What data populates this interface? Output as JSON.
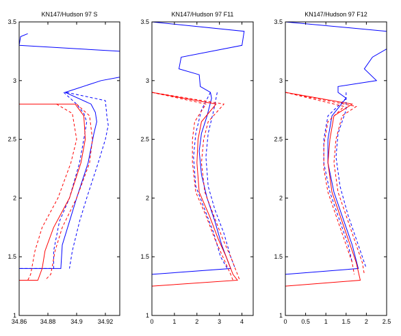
{
  "chart_data": [
    {
      "type": "line",
      "title": "KN147/Hudson 97 S",
      "xlabel": "",
      "ylabel": "",
      "xlim": [
        34.86,
        34.93
      ],
      "ylim": [
        1,
        3.5
      ],
      "xticks": [
        34.86,
        34.88,
        34.9,
        34.92
      ],
      "xtick_labels": [
        "34.86",
        "34.88",
        "34.9",
        "34.92"
      ],
      "yticks": [
        1,
        1.5,
        2,
        2.5,
        3,
        3.5
      ],
      "ytick_labels": [
        "1",
        "1.5",
        "2",
        "2.5",
        "3",
        "3.5"
      ],
      "grid": false,
      "series": [
        {
          "color": "#0000ff",
          "dash": "solid",
          "points": [
            [
              34.866,
              3.4
            ],
            [
              34.861,
              3.375
            ],
            [
              34.86,
              3.3
            ],
            [
              34.93,
              3.25
            ],
            [
              34.93,
              3.03
            ],
            [
              34.917,
              3.0
            ],
            [
              34.892,
              2.9
            ],
            [
              34.91,
              2.8
            ],
            [
              34.913,
              2.73
            ],
            [
              34.914,
              2.65
            ],
            [
              34.912,
              2.55
            ],
            [
              34.908,
              2.3
            ],
            [
              34.9,
              2.0
            ],
            [
              34.895,
              1.8
            ],
            [
              34.89,
              1.6
            ],
            [
              34.889,
              1.4
            ],
            [
              34.86,
              1.4
            ]
          ]
        },
        {
          "color": "#0000ff",
          "dash": "dashed",
          "points": [
            [
              34.891,
              2.9
            ],
            [
              34.9,
              2.8
            ],
            [
              34.905,
              2.72
            ],
            [
              34.907,
              2.65
            ],
            [
              34.905,
              2.5
            ],
            [
              34.902,
              2.3
            ],
            [
              34.895,
              2.0
            ],
            [
              34.888,
              1.8
            ],
            [
              34.884,
              1.55
            ],
            [
              34.884,
              1.4
            ],
            [
              34.86,
              1.4
            ]
          ]
        },
        {
          "color": "#0000ff",
          "dash": "dashed",
          "points": [
            [
              34.893,
              2.9
            ],
            [
              34.92,
              2.83
            ],
            [
              34.921,
              2.7
            ],
            [
              34.922,
              2.62
            ],
            [
              34.92,
              2.5
            ],
            [
              34.915,
              2.3
            ],
            [
              34.907,
              2.0
            ],
            [
              34.902,
              1.8
            ],
            [
              34.897,
              1.55
            ],
            [
              34.895,
              1.4
            ]
          ]
        },
        {
          "color": "#ff0000",
          "dash": "solid",
          "points": [
            [
              34.86,
              2.8
            ],
            [
              34.899,
              2.8
            ],
            [
              34.905,
              2.7
            ],
            [
              34.906,
              2.5
            ],
            [
              34.903,
              2.3
            ],
            [
              34.895,
              2.0
            ],
            [
              34.884,
              1.75
            ],
            [
              34.878,
              1.55
            ],
            [
              34.876,
              1.4
            ],
            [
              34.873,
              1.3
            ],
            [
              34.86,
              1.3
            ]
          ]
        },
        {
          "color": "#ff0000",
          "dash": "dashed",
          "points": [
            [
              34.886,
              2.8
            ],
            [
              34.897,
              2.72
            ],
            [
              34.9,
              2.5
            ],
            [
              34.896,
              2.3
            ],
            [
              34.887,
              2.0
            ],
            [
              34.876,
              1.75
            ],
            [
              34.871,
              1.55
            ],
            [
              34.868,
              1.35
            ],
            [
              34.866,
              1.3
            ]
          ]
        },
        {
          "color": "#ff0000",
          "dash": "dashed",
          "points": [
            [
              34.9,
              2.8
            ],
            [
              34.909,
              2.7
            ],
            [
              34.911,
              2.5
            ],
            [
              34.909,
              2.3
            ],
            [
              34.9,
              2.0
            ],
            [
              34.89,
              1.75
            ],
            [
              34.885,
              1.55
            ],
            [
              34.882,
              1.35
            ],
            [
              34.878,
              1.3
            ]
          ]
        }
      ]
    },
    {
      "type": "line",
      "title": "KN147/Hudson 97 F11",
      "xlabel": "",
      "ylabel": "",
      "xlim": [
        0,
        4.5
      ],
      "ylim": [
        1,
        3.5
      ],
      "xticks": [
        0,
        1,
        2,
        3,
        4
      ],
      "xtick_labels": [
        "0",
        "1",
        "2",
        "3",
        "4"
      ],
      "yticks": [
        1,
        1.5,
        2,
        2.5,
        3,
        3.5
      ],
      "ytick_labels": [
        "1",
        "1.5",
        "2",
        "2.5",
        "3",
        "3.5"
      ],
      "grid": false,
      "series": [
        {
          "color": "#0000ff",
          "dash": "solid",
          "points": [
            [
              0,
              3.5
            ],
            [
              4.1,
              3.42
            ],
            [
              4.0,
              3.3
            ],
            [
              1.3,
              3.2
            ],
            [
              1.2,
              3.1
            ],
            [
              2.1,
              3.05
            ],
            [
              2.15,
              2.95
            ],
            [
              2.6,
              2.9
            ],
            [
              2.65,
              2.85
            ],
            [
              2.45,
              2.7
            ],
            [
              2.2,
              2.55
            ],
            [
              2.1,
              2.4
            ],
            [
              2.2,
              2.2
            ],
            [
              2.45,
              2.0
            ],
            [
              2.8,
              1.8
            ],
            [
              3.1,
              1.6
            ],
            [
              3.5,
              1.4
            ],
            [
              0,
              1.35
            ]
          ]
        },
        {
          "color": "#0000ff",
          "dash": "dashed",
          "points": [
            [
              2.6,
              2.9
            ],
            [
              2.2,
              2.75
            ],
            [
              1.95,
              2.55
            ],
            [
              1.85,
              2.35
            ],
            [
              1.95,
              2.1
            ],
            [
              2.35,
              1.9
            ],
            [
              2.75,
              1.7
            ],
            [
              3.05,
              1.5
            ],
            [
              3.35,
              1.4
            ]
          ]
        },
        {
          "color": "#0000ff",
          "dash": "dashed",
          "points": [
            [
              2.9,
              2.9
            ],
            [
              2.75,
              2.75
            ],
            [
              2.5,
              2.55
            ],
            [
              2.4,
              2.35
            ],
            [
              2.5,
              2.1
            ],
            [
              2.8,
              1.9
            ],
            [
              3.2,
              1.7
            ],
            [
              3.5,
              1.5
            ],
            [
              3.7,
              1.4
            ]
          ]
        },
        {
          "color": "#ff0000",
          "dash": "solid",
          "points": [
            [
              0,
              3.5
            ],
            [
              0,
              2.9
            ],
            [
              2.85,
              2.8
            ],
            [
              2.2,
              2.65
            ],
            [
              2.05,
              2.5
            ],
            [
              2.0,
              2.3
            ],
            [
              2.1,
              2.05
            ],
            [
              2.55,
              1.85
            ],
            [
              2.95,
              1.65
            ],
            [
              3.3,
              1.5
            ],
            [
              3.6,
              1.35
            ],
            [
              3.8,
              1.3
            ],
            [
              0,
              1.25
            ]
          ]
        },
        {
          "color": "#ff0000",
          "dash": "dashed",
          "points": [
            [
              0,
              2.9
            ],
            [
              2.4,
              2.8
            ],
            [
              1.9,
              2.65
            ],
            [
              1.8,
              2.5
            ],
            [
              1.8,
              2.3
            ],
            [
              1.95,
              2.05
            ],
            [
              2.4,
              1.85
            ],
            [
              2.8,
              1.65
            ],
            [
              3.15,
              1.5
            ],
            [
              3.5,
              1.35
            ],
            [
              3.6,
              1.3
            ]
          ]
        },
        {
          "color": "#ff0000",
          "dash": "dashed",
          "points": [
            [
              0,
              2.9
            ],
            [
              3.2,
              2.8
            ],
            [
              2.5,
              2.65
            ],
            [
              2.3,
              2.5
            ],
            [
              2.2,
              2.3
            ],
            [
              2.35,
              2.05
            ],
            [
              2.75,
              1.85
            ],
            [
              3.15,
              1.65
            ],
            [
              3.5,
              1.5
            ],
            [
              3.8,
              1.35
            ],
            [
              3.9,
              1.3
            ]
          ]
        }
      ]
    },
    {
      "type": "line",
      "title": "KN147/Hudson 97 F12",
      "xlabel": "",
      "ylabel": "",
      "xlim": [
        0,
        2.5
      ],
      "ylim": [
        1,
        3.5
      ],
      "xticks": [
        0,
        0.5,
        1,
        1.5,
        2,
        2.5
      ],
      "xtick_labels": [
        "0",
        "0.5",
        "1",
        "1.5",
        "2",
        "2.5"
      ],
      "yticks": [
        1,
        1.5,
        2,
        2.5,
        3,
        3.5
      ],
      "ytick_labels": [
        "1",
        "1.5",
        "2",
        "2.5",
        "3",
        "3.5"
      ],
      "grid": false,
      "series": [
        {
          "color": "#0000ff",
          "dash": "solid",
          "points": [
            [
              0,
              3.5
            ],
            [
              2.5,
              3.42
            ],
            [
              2.5,
              3.27
            ],
            [
              2.15,
              3.2
            ],
            [
              1.95,
              3.1
            ],
            [
              2.25,
              3.0
            ],
            [
              1.3,
              2.95
            ],
            [
              1.3,
              2.9
            ],
            [
              1.5,
              2.85
            ],
            [
              1.15,
              2.7
            ],
            [
              1.05,
              2.5
            ],
            [
              1.05,
              2.3
            ],
            [
              1.2,
              2.05
            ],
            [
              1.45,
              1.8
            ],
            [
              1.65,
              1.6
            ],
            [
              1.8,
              1.4
            ],
            [
              0,
              1.35
            ]
          ]
        },
        {
          "color": "#0000ff",
          "dash": "dashed",
          "points": [
            [
              1.5,
              2.85
            ],
            [
              1.05,
              2.7
            ],
            [
              0.95,
              2.5
            ],
            [
              0.95,
              2.3
            ],
            [
              1.1,
              2.05
            ],
            [
              1.35,
              1.8
            ],
            [
              1.55,
              1.6
            ],
            [
              1.65,
              1.45
            ]
          ]
        },
        {
          "color": "#0000ff",
          "dash": "dashed",
          "points": [
            [
              1.5,
              2.9
            ],
            [
              1.5,
              2.75
            ],
            [
              1.3,
              2.55
            ],
            [
              1.25,
              2.35
            ],
            [
              1.35,
              2.1
            ],
            [
              1.55,
              1.85
            ],
            [
              1.8,
              1.6
            ],
            [
              1.95,
              1.45
            ],
            [
              2.0,
              1.4
            ]
          ]
        },
        {
          "color": "#ff0000",
          "dash": "solid",
          "points": [
            [
              0,
              3.5
            ],
            [
              0,
              2.9
            ],
            [
              1.65,
              2.8
            ],
            [
              1.2,
              2.7
            ],
            [
              1.1,
              2.5
            ],
            [
              1.05,
              2.3
            ],
            [
              1.15,
              2.05
            ],
            [
              1.4,
              1.8
            ],
            [
              1.6,
              1.6
            ],
            [
              1.75,
              1.45
            ],
            [
              1.85,
              1.3
            ],
            [
              0,
              1.25
            ]
          ]
        },
        {
          "color": "#ff0000",
          "dash": "dashed",
          "points": [
            [
              0,
              2.9
            ],
            [
              1.45,
              2.78
            ],
            [
              1.05,
              2.65
            ],
            [
              0.95,
              2.45
            ],
            [
              0.95,
              2.25
            ],
            [
              1.05,
              2.05
            ],
            [
              1.3,
              1.8
            ],
            [
              1.5,
              1.6
            ],
            [
              1.65,
              1.45
            ],
            [
              1.7,
              1.35
            ]
          ]
        },
        {
          "color": "#ff0000",
          "dash": "dashed",
          "points": [
            [
              0,
              2.9
            ],
            [
              1.75,
              2.78
            ],
            [
              1.4,
              2.7
            ],
            [
              1.25,
              2.5
            ],
            [
              1.2,
              2.3
            ],
            [
              1.3,
              2.05
            ],
            [
              1.55,
              1.8
            ],
            [
              1.75,
              1.6
            ],
            [
              1.9,
              1.45
            ],
            [
              1.95,
              1.35
            ]
          ]
        }
      ]
    }
  ]
}
